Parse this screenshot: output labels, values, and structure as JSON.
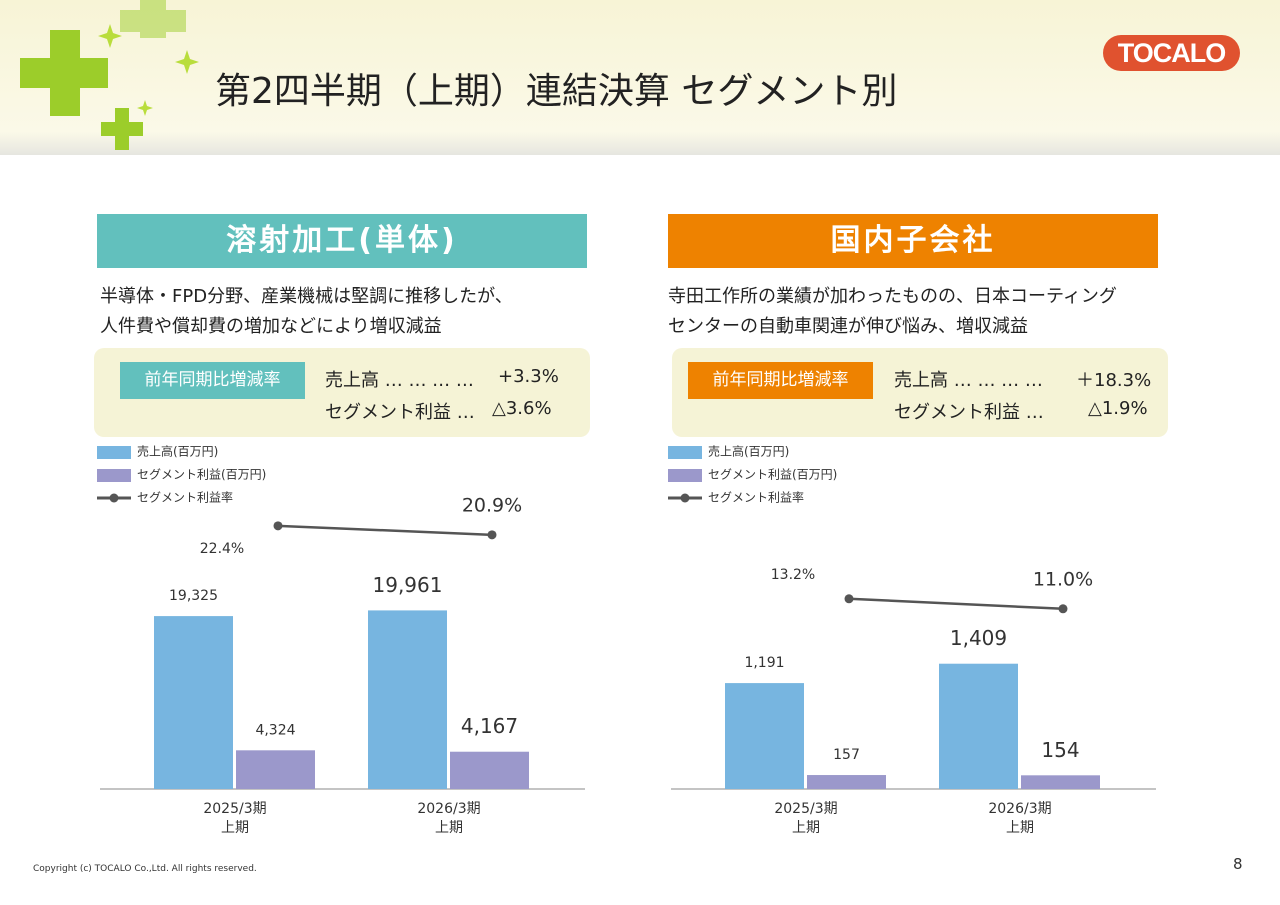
{
  "header": {
    "title": "第2四半期（上期）連結決算 セグメント別",
    "logo": "TOCALO"
  },
  "panels": [
    {
      "heading": "溶射加工(単体)",
      "description": "半導体・FPD分野、産業機械は堅調に推移したが、\n人件費や償却費の増加などにより増収減益",
      "comparison": {
        "label": "前年同期比増減率",
        "rows": [
          {
            "item": "売上高 … … … …",
            "value": "+3.3%"
          },
          {
            "item": "セグメント利益 …",
            "value": "△3.6%"
          }
        ]
      }
    },
    {
      "heading": "国内子会社",
      "description": "寺田工作所の業績が加わったものの、日本コーティング\nセンターの自動車関連が伸び悩み、増収減益",
      "comparison": {
        "label": "前年同期比増減率",
        "rows": [
          {
            "item": "売上高 … … … …",
            "value": "＋18.3%"
          },
          {
            "item": "セグメント利益 …",
            "value": "△1.9%"
          }
        ]
      }
    }
  ],
  "chart_data": [
    {
      "type": "bar",
      "categories": [
        "2025/3期\n上期",
        "2026/3期\n上期"
      ],
      "series": [
        {
          "name": "売上高(百万円)",
          "color": "#77b5e0",
          "values": [
            19325,
            19961
          ],
          "value_labels": [
            "19,325",
            "19,961"
          ]
        },
        {
          "name": "セグメント利益(百万円)",
          "color": "#9b98cb",
          "values": [
            4324,
            4167
          ],
          "value_labels": [
            "4,324",
            "4,167"
          ]
        },
        {
          "name": "セグメント利益率",
          "color": "#555555",
          "type": "line",
          "axis": "y2",
          "values": [
            22.4,
            20.9
          ],
          "value_labels": [
            "22.4%",
            "20.9%"
          ]
        }
      ],
      "ylim": [
        0,
        32300
      ],
      "y2lim": [
        -21.4,
        26.7
      ]
    },
    {
      "type": "bar",
      "categories": [
        "2025/3期\n上期",
        "2026/3期\n上期"
      ],
      "series": [
        {
          "name": "売上高(百万円)",
          "color": "#77b5e0",
          "values": [
            1191,
            1409
          ],
          "value_labels": [
            "1,191",
            "1,409"
          ]
        },
        {
          "name": "セグメント利益(百万円)",
          "color": "#9b98cb",
          "values": [
            157,
            154
          ]
        },
        {
          "name": "セグメント利益率",
          "color": "#555555",
          "type": "line",
          "axis": "y2",
          "values": [
            13.2,
            11.0
          ],
          "value_labels": [
            "13.2%",
            "11.0%"
          ]
        }
      ],
      "ylim": [
        0,
        3250
      ],
      "y2lim": [
        -28.6,
        34.9
      ]
    }
  ],
  "footer": {
    "copyright": "Copyright (c) TOCALO Co.,Ltd. All rights reserved.",
    "page": 8
  }
}
